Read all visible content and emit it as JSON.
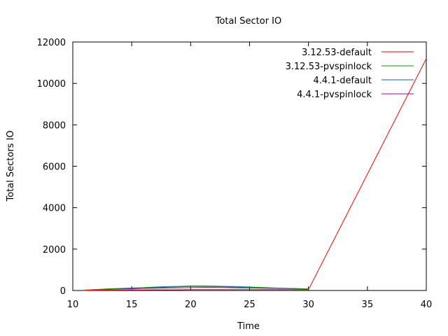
{
  "chart_data": {
    "type": "line",
    "title": "Total Sector IO",
    "xlabel": "Time",
    "ylabel": "Total Sectors IO",
    "xlim": [
      10,
      40
    ],
    "ylim": [
      0,
      12000
    ],
    "xticks": [
      10,
      15,
      20,
      25,
      30,
      35,
      40
    ],
    "yticks": [
      0,
      2000,
      4000,
      6000,
      8000,
      10000,
      12000
    ],
    "grid": false,
    "legend_position": "top-right",
    "series": [
      {
        "name": "3.12.53-default",
        "color": "#ff0000",
        "x": [
          11,
          12,
          13,
          14,
          15,
          16,
          17,
          18,
          19,
          20,
          21,
          22,
          23,
          24,
          25,
          26,
          27,
          28,
          29,
          30,
          40
        ],
        "y": [
          10,
          15,
          20,
          25,
          30,
          30,
          35,
          35,
          35,
          40,
          40,
          40,
          40,
          40,
          40,
          40,
          40,
          40,
          40,
          40,
          11200
        ]
      },
      {
        "name": "3.12.53-pvspinlock",
        "color": "#00a000",
        "x": [
          11,
          12,
          13,
          14,
          15,
          16,
          17,
          18,
          19,
          20,
          21,
          22,
          23,
          24,
          25,
          26,
          27,
          28,
          29,
          30
        ],
        "y": [
          20,
          50,
          80,
          100,
          120,
          140,
          170,
          190,
          200,
          220,
          220,
          210,
          200,
          190,
          170,
          150,
          130,
          110,
          90,
          70
        ]
      },
      {
        "name": "4.4.1-default",
        "color": "#0066cc",
        "x": [
          11,
          12,
          13,
          14,
          15,
          16,
          17,
          18,
          19,
          20,
          21,
          22,
          23,
          24,
          25,
          26,
          27,
          28,
          29,
          30
        ],
        "y": [
          10,
          40,
          60,
          80,
          100,
          120,
          140,
          160,
          180,
          200,
          200,
          190,
          180,
          160,
          140,
          120,
          110,
          100,
          90,
          70
        ]
      },
      {
        "name": "4.4.1-pvspinlock",
        "color": "#a000c0",
        "x": [
          11,
          12,
          13,
          14,
          15,
          16,
          17,
          18,
          19,
          20,
          21,
          22,
          23,
          24,
          25,
          26,
          27,
          28,
          29,
          30
        ],
        "y": [
          10,
          30,
          50,
          70,
          80,
          100,
          110,
          120,
          130,
          140,
          150,
          150,
          140,
          130,
          120,
          110,
          100,
          90,
          80,
          60
        ]
      }
    ]
  }
}
